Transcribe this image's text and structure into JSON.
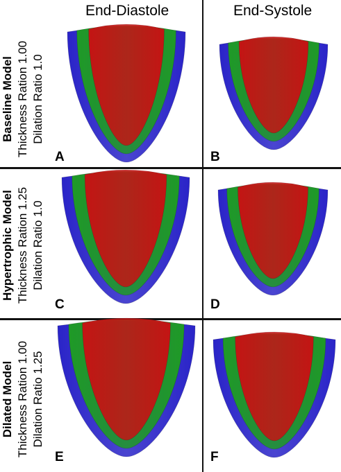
{
  "columns": [
    "End-Diastole",
    "End-Systole"
  ],
  "rows": [
    {
      "model": "Baseline Model",
      "thickness": "Thickness Ration 1.00",
      "dilation": "Dilation Ratio 1.0"
    },
    {
      "model": "Hypertrophic Model",
      "thickness": "Thickness Ration 1.25",
      "dilation": "Dilation Ratio 1.0"
    },
    {
      "model": "Dilated Model",
      "thickness": "Thickness Ration 1.00",
      "dilation": "Dilation Ratio 1.25"
    }
  ],
  "panels": [
    "A",
    "B",
    "C",
    "D",
    "E",
    "F"
  ],
  "layer_colors": {
    "outer": "#2a24c8",
    "middle": "#1f9a26",
    "inner": "#c41414"
  }
}
